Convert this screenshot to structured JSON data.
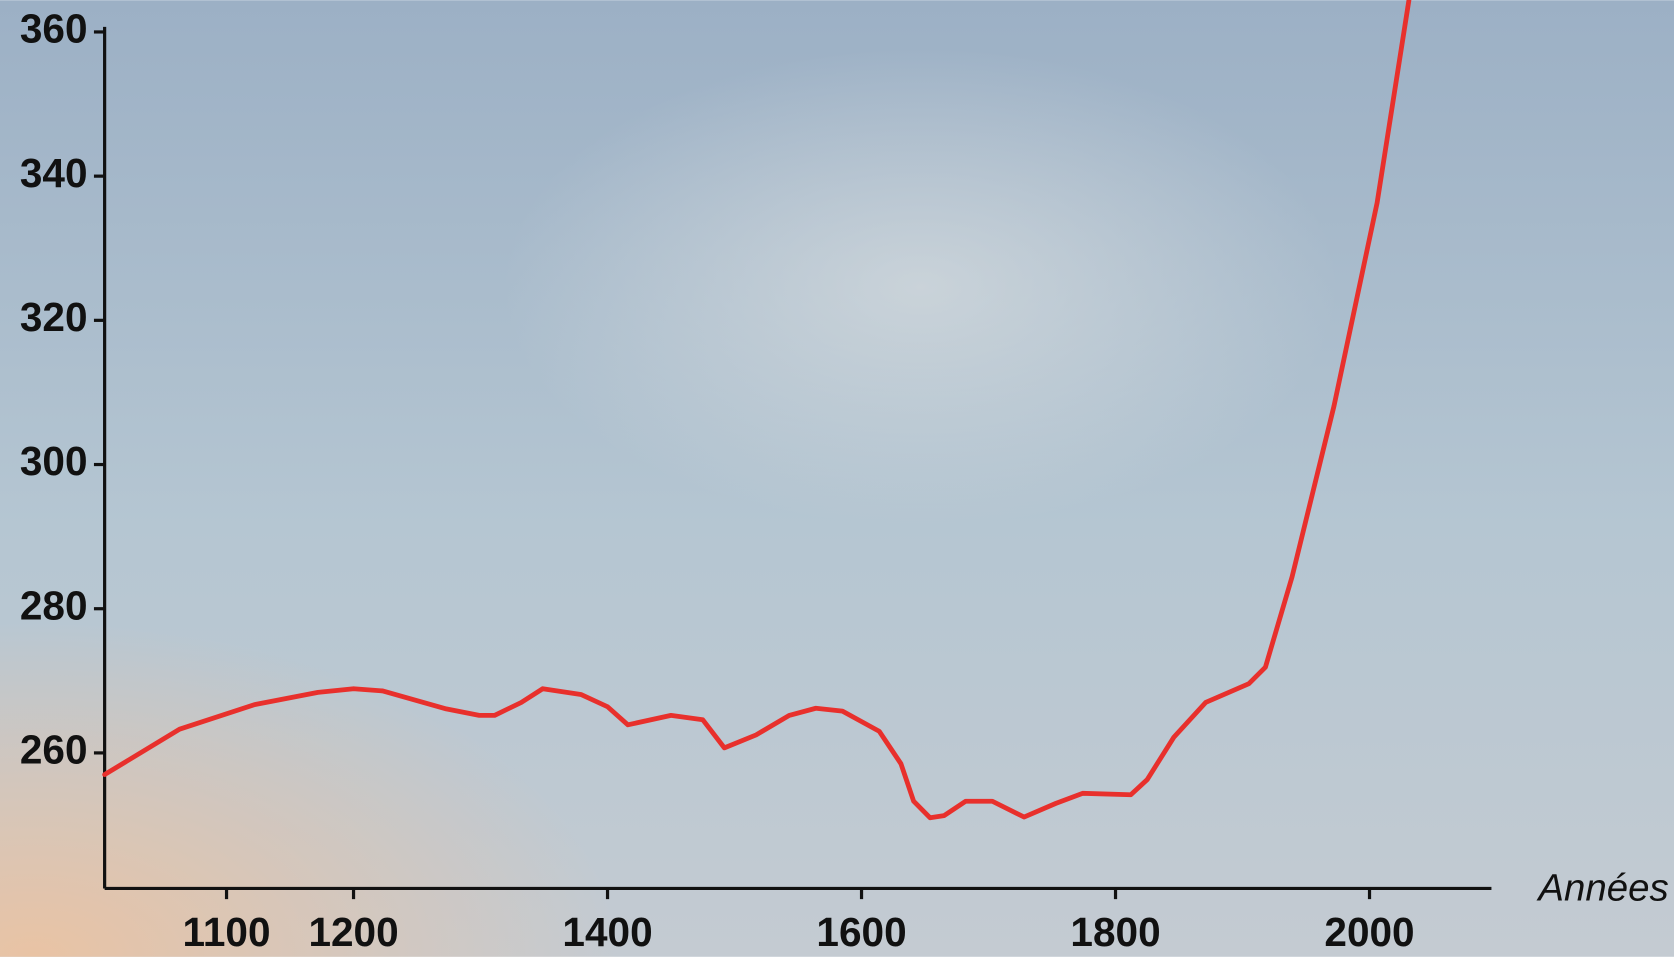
{
  "chart_data": {
    "type": "line",
    "x_label": "Années",
    "x": [
      1004,
      1063,
      1122,
      1172,
      1200,
      1223,
      1273,
      1299,
      1311,
      1332,
      1349,
      1379,
      1400,
      1416,
      1450,
      1475,
      1492,
      1517,
      1543,
      1564,
      1585,
      1614,
      1631,
      1641,
      1654,
      1665,
      1682,
      1703,
      1728,
      1753,
      1774,
      1812,
      1825,
      1846,
      1871,
      1905,
      1918,
      1939,
      1972,
      2006,
      2031
    ],
    "series": [
      {
        "color": "#e8302c",
        "values": [
          257.0,
          263.3,
          266.7,
          268.4,
          268.9,
          268.6,
          266.1,
          265.2,
          265.2,
          267.0,
          268.9,
          268.1,
          266.4,
          263.9,
          265.2,
          264.6,
          260.7,
          262.5,
          265.2,
          266.2,
          265.8,
          263.0,
          258.5,
          253.3,
          251.0,
          251.3,
          253.3,
          253.3,
          251.1,
          253.0,
          254.4,
          254.2,
          256.3,
          262.2,
          267.0,
          269.6,
          271.9,
          284.4,
          308.1,
          336.3,
          364.4
        ]
      }
    ],
    "xlim": [
      1004,
      2096
    ],
    "xticks": [
      1100,
      1200,
      1400,
      1600,
      1800,
      2000
    ],
    "ylim": [
      241.2,
      360.7
    ],
    "yticks": [
      260,
      280,
      300,
      320,
      340,
      360
    ]
  }
}
